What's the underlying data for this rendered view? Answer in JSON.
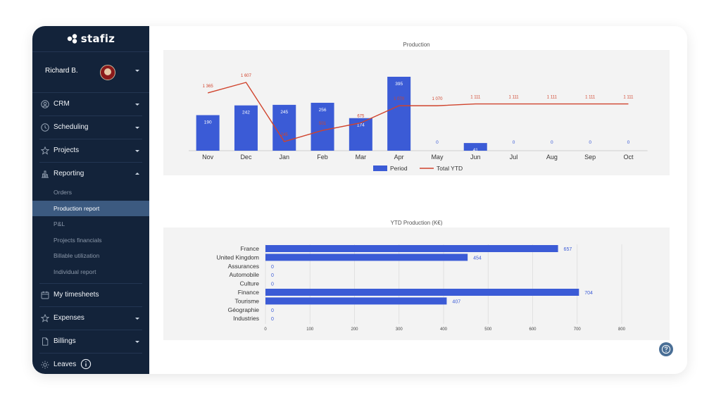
{
  "app": {
    "logo_text": "stafiz"
  },
  "user": {
    "name": "Richard B."
  },
  "nav": {
    "crm": "CRM",
    "scheduling": "Scheduling",
    "projects": "Projects",
    "reporting": "Reporting",
    "reporting_items": [
      "Orders",
      "Production report",
      "P&L",
      "Projects financials",
      "Billable utilization",
      "Individual report"
    ],
    "my_timesheets": "My timesheets",
    "expenses": "Expenses",
    "billings": "Billings",
    "leaves": "Leaves"
  },
  "colors": {
    "sidebar": "#13233a",
    "bar": "#3b5bd6",
    "line": "#d0432c",
    "active_item": "#3c5a80",
    "value_label": "#3b5bd6"
  },
  "chart_data": [
    {
      "type": "bar",
      "title": "Production",
      "categories": [
        "Nov",
        "Dec",
        "Jan",
        "Feb",
        "Mar",
        "Apr",
        "May",
        "Jun",
        "Jul",
        "Aug",
        "Sep",
        "Oct"
      ],
      "series": [
        {
          "name": "Period",
          "type": "bar",
          "values": [
            190,
            242,
            245,
            256,
            174,
            395,
            0,
            41,
            0,
            0,
            0,
            0
          ]
        },
        {
          "name": "Total YTD",
          "type": "line",
          "values": [
            1365,
            1607,
            245,
            501,
            675,
            1070,
            1070,
            1111,
            1111,
            1111,
            1111,
            1111
          ],
          "labels": [
            "1 365",
            "1 607",
            "245",
            "501",
            "675",
            "1 070",
            "1 070",
            "1 111",
            "1 111",
            "1 111",
            "1 111",
            "1 111"
          ]
        }
      ],
      "legend": "bottom",
      "grid": false
    },
    {
      "type": "bar",
      "orientation": "horizontal",
      "title": "YTD Production (K€)",
      "categories": [
        "France",
        "United Kingdom",
        "Assurances",
        "Automobile",
        "Culture",
        "Finance",
        "Tourisme",
        "Géographie",
        "Industries"
      ],
      "values": [
        657,
        454,
        0,
        0,
        0,
        704,
        407,
        0,
        0
      ],
      "xlim": [
        0,
        800
      ],
      "xticks": [
        "0",
        "100",
        "200",
        "300",
        "400",
        "500",
        "600",
        "700",
        "800"
      ],
      "grid": true
    }
  ]
}
